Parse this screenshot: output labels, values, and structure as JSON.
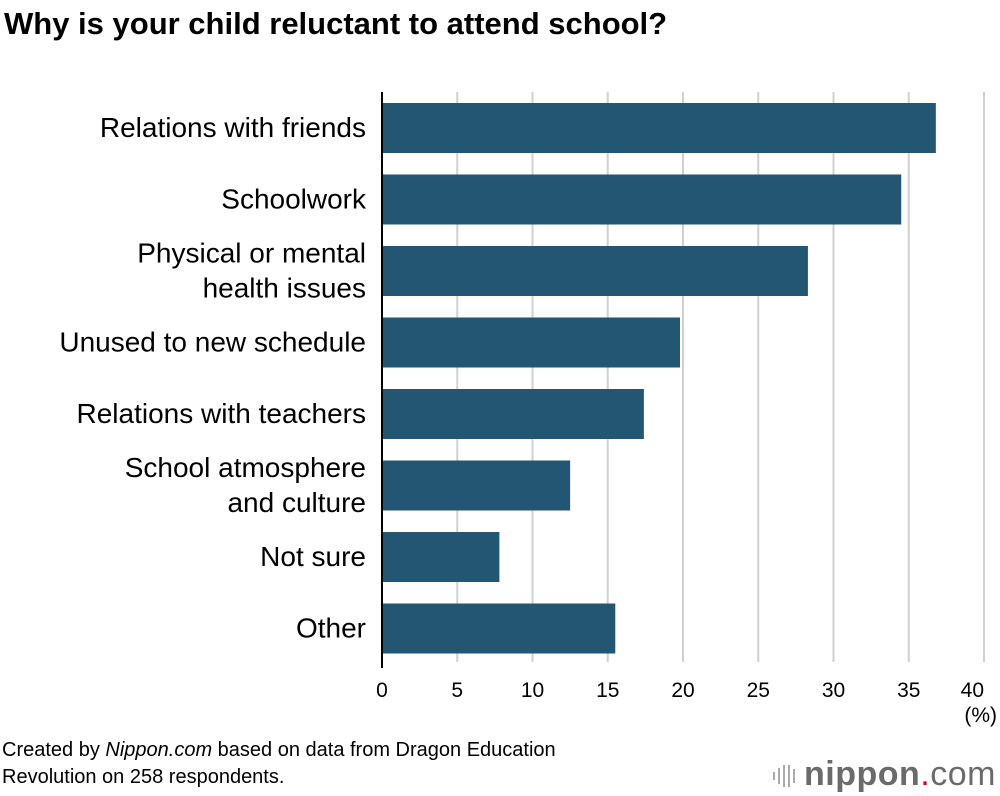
{
  "chart_data": {
    "type": "bar",
    "orientation": "horizontal",
    "title": "Why is your child reluctant to attend school?",
    "categories": [
      [
        "Relations with friends"
      ],
      [
        "Schoolwork"
      ],
      [
        "Physical or mental",
        "health issues"
      ],
      [
        "Unused to new schedule"
      ],
      [
        "Relations with teachers"
      ],
      [
        "School atmosphere",
        "and culture"
      ],
      [
        "Not sure"
      ],
      [
        "Other"
      ]
    ],
    "values": [
      36.8,
      34.5,
      28.3,
      19.8,
      17.4,
      12.5,
      7.8,
      15.5
    ],
    "xlim": [
      0,
      40
    ],
    "xticks": [
      0,
      5,
      10,
      15,
      20,
      25,
      30,
      35,
      40
    ],
    "xunit": "(%)",
    "grid": true,
    "bar_color": "#235673",
    "grid_color": "#d0d0d0"
  },
  "source": {
    "prefix": "Created by ",
    "brand": "Nippon.com",
    "suffix": " based on data from Dragon Education",
    "line2": "Revolution on 258 respondents."
  },
  "logo": {
    "bold": "nippon",
    "dot": ".",
    "rest": "com"
  }
}
